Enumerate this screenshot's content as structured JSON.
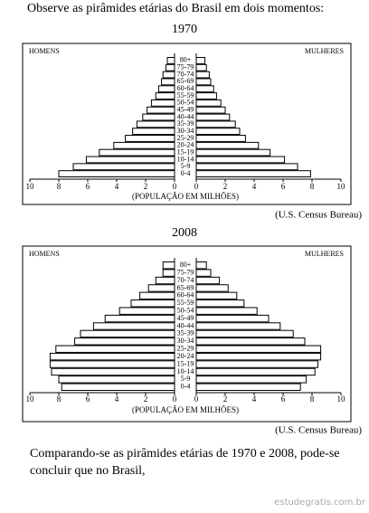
{
  "header": {
    "text": "Observe as pirâmides etárias do Brasil em dois momentos:"
  },
  "chart_data": [
    {
      "type": "population_pyramid",
      "title": "1970",
      "categories": [
        "80+",
        "75-79",
        "70-74",
        "65-69",
        "60-64",
        "55-59",
        "50-54",
        "45-49",
        "40-44",
        "35-39",
        "30-34",
        "25-29",
        "20-24",
        "15-19",
        "10-14",
        "5-9",
        "0-4"
      ],
      "series": [
        {
          "name": "HOMENS",
          "color": "#ffffff",
          "values": [
            0.5,
            0.6,
            0.8,
            0.9,
            1.1,
            1.3,
            1.6,
            1.9,
            2.2,
            2.6,
            2.9,
            3.4,
            4.2,
            5.2,
            6.1,
            7.0,
            8.0
          ]
        },
        {
          "name": "MULHERES",
          "color": "#ffffff",
          "values": [
            0.6,
            0.7,
            0.9,
            1.0,
            1.2,
            1.4,
            1.7,
            2.0,
            2.3,
            2.7,
            3.0,
            3.4,
            4.3,
            5.1,
            6.1,
            7.0,
            7.9
          ]
        }
      ],
      "xlim": [
        0,
        10
      ],
      "xticks": [
        0,
        2,
        4,
        6,
        8,
        10
      ],
      "xlabel": "(POPULAÇÃO EM MILHÕES)",
      "source": "(U.S. Census Bureau)"
    },
    {
      "type": "population_pyramid",
      "title": "2008",
      "categories": [
        "80+",
        "75-79",
        "70-74",
        "65-69",
        "60-64",
        "55-59",
        "50-54",
        "45-49",
        "40-44",
        "35-39",
        "30-34",
        "25-29",
        "20-24",
        "15-19",
        "10-14",
        "5-9",
        "0-4"
      ],
      "series": [
        {
          "name": "HOMENS",
          "color": "#ffffff",
          "values": [
            0.8,
            0.8,
            1.3,
            1.8,
            2.4,
            3.0,
            3.8,
            4.8,
            5.6,
            6.5,
            6.9,
            8.2,
            8.6,
            8.6,
            8.5,
            8.0,
            7.8
          ]
        },
        {
          "name": "MULHERES",
          "color": "#ffffff",
          "values": [
            0.7,
            1.0,
            1.6,
            2.2,
            2.8,
            3.3,
            4.2,
            5.0,
            5.8,
            6.7,
            7.5,
            8.6,
            8.6,
            8.4,
            8.2,
            7.6,
            7.2
          ]
        }
      ],
      "xlim": [
        0,
        10
      ],
      "xticks": [
        0,
        2,
        4,
        6,
        8,
        10
      ],
      "xlabel": "(POPULAÇÃO EM MILHÕES)",
      "source": "(U.S. Census Bureau)"
    }
  ],
  "footer": {
    "text": "Comparando-se as pirâmides etárias de 1970 e 2008, pode-se concluir que no Brasil,",
    "watermark": "estudegratis.com.br"
  }
}
